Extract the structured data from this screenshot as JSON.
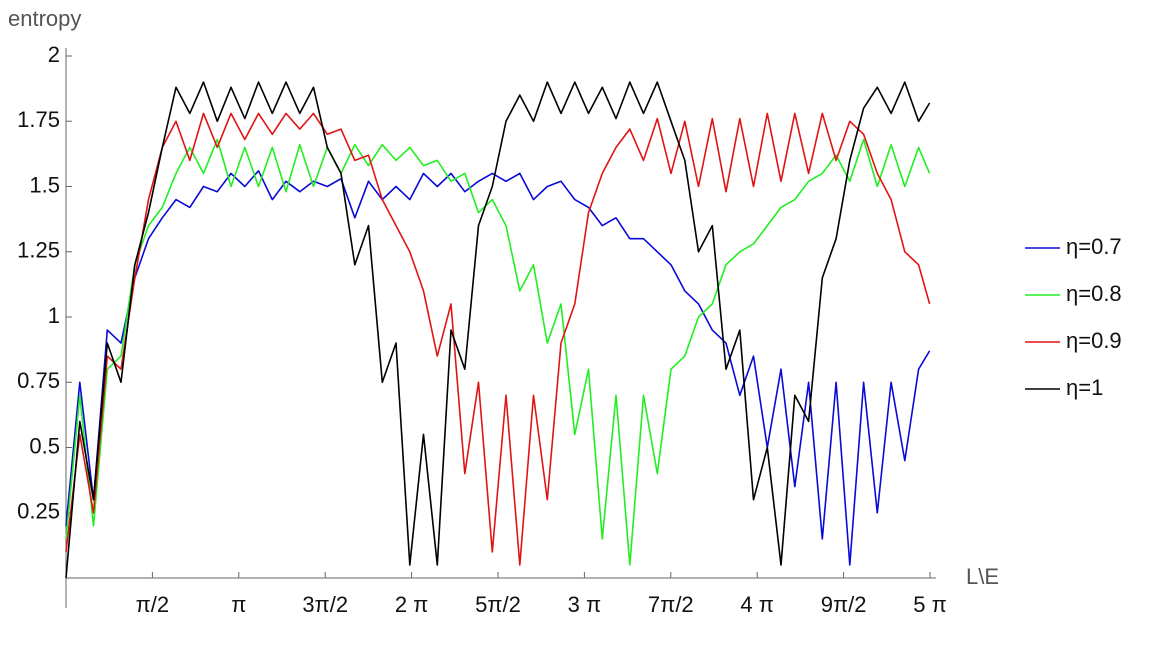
{
  "chart_data": {
    "type": "line",
    "xlabel": "L\\E",
    "ylabel": "entropy",
    "xlim": [
      0,
      15.708
    ],
    "ylim": [
      0,
      2
    ],
    "xticks": [
      {
        "value": 1.5708,
        "label": "π/2"
      },
      {
        "value": 3.1416,
        "label": "π"
      },
      {
        "value": 4.7124,
        "label": "3π/2"
      },
      {
        "value": 6.2832,
        "label": "2 π"
      },
      {
        "value": 7.854,
        "label": "5π/2"
      },
      {
        "value": 9.4248,
        "label": "3 π"
      },
      {
        "value": 10.9956,
        "label": "7π/2"
      },
      {
        "value": 12.5664,
        "label": "4 π"
      },
      {
        "value": 14.1372,
        "label": "9π/2"
      },
      {
        "value": 15.708,
        "label": "5 π"
      }
    ],
    "yticks": [
      0.25,
      0.5,
      0.75,
      1,
      1.25,
      1.5,
      1.75,
      2
    ],
    "legend": "right",
    "x": [
      0,
      0.25,
      0.5,
      0.75,
      1,
      1.25,
      1.5,
      1.75,
      2,
      2.25,
      2.5,
      2.75,
      3,
      3.25,
      3.5,
      3.75,
      4,
      4.25,
      4.5,
      4.75,
      5,
      5.25,
      5.5,
      5.75,
      6,
      6.25,
      6.5,
      6.75,
      7,
      7.25,
      7.5,
      7.75,
      8,
      8.25,
      8.5,
      8.75,
      9,
      9.25,
      9.5,
      9.75,
      10,
      10.25,
      10.5,
      10.75,
      11,
      11.25,
      11.5,
      11.75,
      12,
      12.25,
      12.5,
      12.75,
      13,
      13.25,
      13.5,
      13.75,
      14,
      14.25,
      14.5,
      14.75,
      15,
      15.25,
      15.5,
      15.7
    ],
    "series": [
      {
        "name": "η=0.7",
        "color": "#0a0ad8",
        "values": [
          0.2,
          0.75,
          0.3,
          0.95,
          0.9,
          1.15,
          1.3,
          1.38,
          1.45,
          1.42,
          1.5,
          1.48,
          1.55,
          1.5,
          1.56,
          1.45,
          1.52,
          1.48,
          1.52,
          1.5,
          1.53,
          1.38,
          1.52,
          1.45,
          1.5,
          1.45,
          1.55,
          1.5,
          1.55,
          1.48,
          1.52,
          1.55,
          1.52,
          1.55,
          1.45,
          1.5,
          1.52,
          1.45,
          1.42,
          1.35,
          1.38,
          1.3,
          1.3,
          1.25,
          1.2,
          1.1,
          1.05,
          0.95,
          0.9,
          0.7,
          0.85,
          0.5,
          0.8,
          0.35,
          0.75,
          0.15,
          0.75,
          0.05,
          0.75,
          0.25,
          0.75,
          0.45,
          0.8,
          0.87
        ]
      },
      {
        "name": "η=0.8",
        "color": "#22ee22",
        "values": [
          0.15,
          0.7,
          0.2,
          0.8,
          0.85,
          1.2,
          1.35,
          1.42,
          1.55,
          1.65,
          1.55,
          1.68,
          1.5,
          1.65,
          1.5,
          1.65,
          1.48,
          1.66,
          1.5,
          1.65,
          1.55,
          1.66,
          1.58,
          1.66,
          1.6,
          1.65,
          1.58,
          1.6,
          1.52,
          1.55,
          1.4,
          1.45,
          1.35,
          1.1,
          1.2,
          0.9,
          1.05,
          0.55,
          0.8,
          0.15,
          0.7,
          0.05,
          0.7,
          0.4,
          0.8,
          0.85,
          1.0,
          1.05,
          1.2,
          1.25,
          1.28,
          1.35,
          1.42,
          1.45,
          1.52,
          1.55,
          1.62,
          1.52,
          1.68,
          1.5,
          1.66,
          1.5,
          1.65,
          1.55
        ]
      },
      {
        "name": "η=0.9",
        "color": "#e01414",
        "values": [
          0.1,
          0.55,
          0.25,
          0.85,
          0.8,
          1.15,
          1.45,
          1.65,
          1.75,
          1.6,
          1.78,
          1.65,
          1.78,
          1.68,
          1.78,
          1.7,
          1.78,
          1.72,
          1.78,
          1.7,
          1.72,
          1.6,
          1.62,
          1.45,
          1.35,
          1.25,
          1.1,
          0.85,
          1.05,
          0.4,
          0.75,
          0.1,
          0.7,
          0.05,
          0.7,
          0.3,
          0.9,
          1.05,
          1.4,
          1.55,
          1.65,
          1.72,
          1.6,
          1.76,
          1.55,
          1.75,
          1.5,
          1.76,
          1.48,
          1.76,
          1.5,
          1.78,
          1.52,
          1.78,
          1.55,
          1.78,
          1.6,
          1.75,
          1.7,
          1.55,
          1.45,
          1.25,
          1.2,
          1.05
        ]
      },
      {
        "name": "η=1",
        "color": "#000000",
        "values": [
          0.0,
          0.6,
          0.3,
          0.9,
          0.75,
          1.2,
          1.4,
          1.65,
          1.88,
          1.78,
          1.9,
          1.75,
          1.88,
          1.76,
          1.9,
          1.78,
          1.9,
          1.78,
          1.88,
          1.65,
          1.55,
          1.2,
          1.35,
          0.75,
          0.9,
          0.05,
          0.55,
          0.05,
          0.95,
          0.8,
          1.35,
          1.5,
          1.75,
          1.85,
          1.75,
          1.9,
          1.78,
          1.9,
          1.78,
          1.88,
          1.76,
          1.9,
          1.78,
          1.9,
          1.75,
          1.6,
          1.25,
          1.35,
          0.8,
          0.95,
          0.3,
          0.5,
          0.05,
          0.7,
          0.6,
          1.15,
          1.3,
          1.6,
          1.8,
          1.88,
          1.78,
          1.9,
          1.75,
          1.82
        ]
      }
    ]
  }
}
